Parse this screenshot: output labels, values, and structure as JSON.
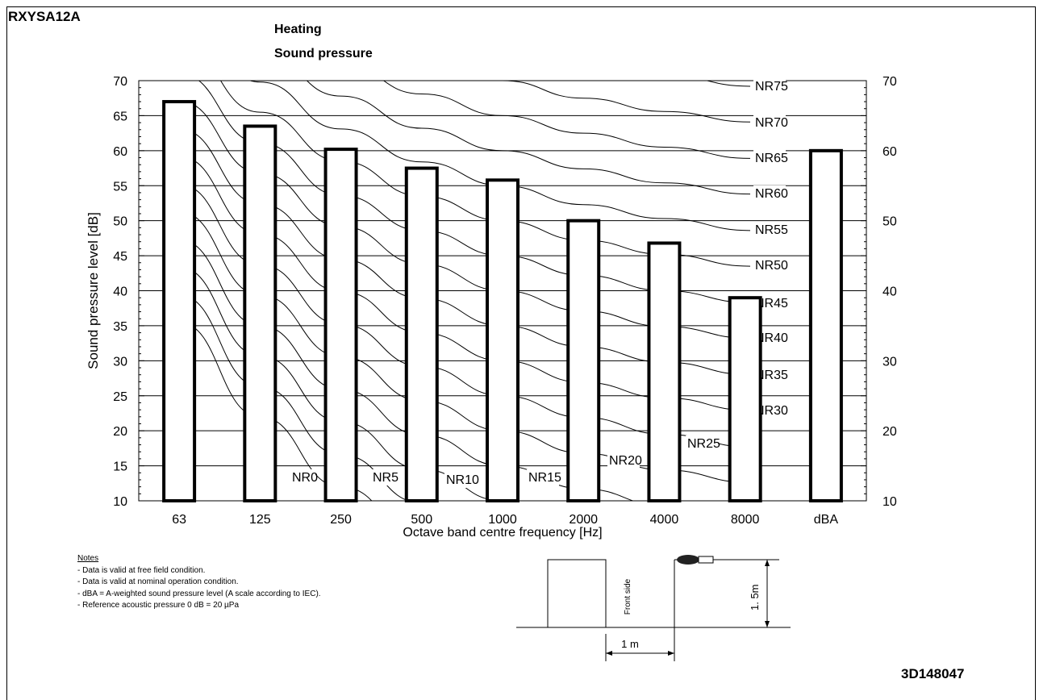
{
  "header": {
    "model": "RXYSA12A",
    "title": "Heating",
    "subtitle": "Sound pressure",
    "document_number": "3D148047"
  },
  "chart_data": {
    "type": "bar",
    "categories": [
      "63",
      "125",
      "250",
      "500",
      "1000",
      "2000",
      "4000",
      "8000",
      "dBA"
    ],
    "values": [
      67,
      63.5,
      60.2,
      57.5,
      55.8,
      50,
      46.8,
      39,
      60
    ],
    "xlabel": "Octave band centre frequency [Hz]",
    "ylabel": "Sound pressure level [dB]",
    "ylim": [
      10,
      70
    ],
    "yticks": [
      10,
      15,
      20,
      25,
      30,
      35,
      40,
      45,
      50,
      55,
      60,
      65,
      70
    ],
    "right_ylim": [
      10,
      70
    ],
    "right_yticks": [
      10,
      20,
      30,
      40,
      50,
      60,
      70
    ],
    "grid": true,
    "nr_curves": [
      {
        "label": "NR0",
        "values": [
          35.5,
          22.0,
          12.0,
          4.8,
          0.0,
          -3.5,
          -6.1,
          -8.0
        ]
      },
      {
        "label": "NR5",
        "values": [
          39.4,
          26.3,
          16.6,
          9.7,
          5.0,
          1.6,
          -1.0,
          -2.8
        ]
      },
      {
        "label": "NR10",
        "values": [
          43.4,
          30.7,
          21.3,
          14.5,
          10.0,
          6.6,
          4.2,
          2.3
        ]
      },
      {
        "label": "NR15",
        "values": [
          47.3,
          35.0,
          25.9,
          19.4,
          15.0,
          11.7,
          9.3,
          7.4
        ]
      },
      {
        "label": "NR20",
        "values": [
          51.3,
          39.4,
          30.6,
          24.3,
          20.0,
          16.8,
          14.4,
          12.6
        ]
      },
      {
        "label": "NR25",
        "values": [
          55.2,
          43.7,
          35.2,
          29.2,
          25.0,
          21.9,
          19.5,
          17.7
        ]
      },
      {
        "label": "NR30",
        "values": [
          59.2,
          48.1,
          39.9,
          34.0,
          30.0,
          26.9,
          24.7,
          22.9
        ]
      },
      {
        "label": "NR35",
        "values": [
          63.1,
          52.4,
          44.5,
          38.9,
          35.0,
          32.0,
          29.8,
          28.0
        ]
      },
      {
        "label": "NR40",
        "values": [
          67.1,
          56.8,
          49.2,
          43.8,
          40.0,
          37.1,
          34.9,
          33.2
        ]
      },
      {
        "label": "NR45",
        "values": [
          71.0,
          61.1,
          53.6,
          48.6,
          45.0,
          42.2,
          40.0,
          38.3
        ]
      },
      {
        "label": "NR50",
        "values": [
          75.0,
          65.5,
          58.5,
          53.5,
          50.0,
          47.2,
          45.2,
          43.5
        ]
      },
      {
        "label": "NR55",
        "values": [
          78.9,
          69.8,
          63.1,
          58.4,
          55.0,
          52.3,
          50.3,
          48.6
        ]
      },
      {
        "label": "NR60",
        "values": [
          82.9,
          74.2,
          67.8,
          63.2,
          60.0,
          57.4,
          55.4,
          53.8
        ]
      },
      {
        "label": "NR65",
        "values": [
          86.8,
          78.5,
          72.4,
          68.1,
          65.0,
          62.5,
          60.5,
          58.9
        ]
      },
      {
        "label": "NR70",
        "values": [
          90.8,
          82.9,
          77.1,
          73.0,
          70.0,
          67.5,
          65.6,
          64.1
        ]
      },
      {
        "label": "NR75",
        "values": [
          94.7,
          87.2,
          81.7,
          77.9,
          75.0,
          72.6,
          70.8,
          69.2
        ]
      }
    ]
  },
  "notes": {
    "heading": "Notes",
    "items": [
      "-  Data is valid at free field condition.",
      "-  Data is valid at nominal operation condition.",
      "-  dBA = A-weighted sound pressure level (A scale according to IEC).",
      "-  Reference acoustic pressure 0 dB = 20 µPa"
    ]
  },
  "setup_diagram": {
    "front_label": "Front side",
    "height_label": "1. 5m",
    "distance_label": "1 m"
  }
}
